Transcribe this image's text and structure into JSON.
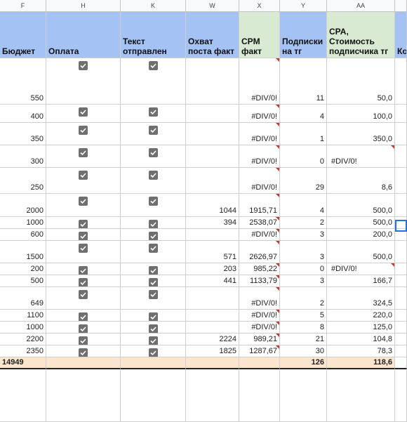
{
  "columns": [
    "F",
    "H",
    "K",
    "W",
    "X",
    "Y",
    "AA"
  ],
  "headers": {
    "budget": "Бюджет",
    "payment": "Оплата",
    "text_sent": "Текст отправлен",
    "reach_fact": "Охват поста факт",
    "cpm_fact": "CPM факт",
    "subs_tg": "Подписки на тг",
    "cpa": "CPA, Стоимость подписчика тг",
    "cut": "Ко"
  },
  "colors": {
    "header_blue": "#a4c2f4",
    "header_green": "#d9ead3",
    "total_bg": "#fce5cd",
    "checkbox": "#6f6f6f",
    "error_marker": "#c0392b"
  },
  "rows": [
    {
      "budget": "550",
      "paid": true,
      "sent": true,
      "reach": "",
      "cpm": "#DIV/0!",
      "subs": "11",
      "cpa": "50,0",
      "cpa_left": false
    },
    {
      "budget": "400",
      "paid": true,
      "sent": true,
      "reach": "",
      "cpm": "#DIV/0!",
      "subs": "4",
      "cpa": "100,0",
      "cpa_left": false
    },
    {
      "budget": "350",
      "paid": true,
      "sent": true,
      "reach": "",
      "cpm": "#DIV/0!",
      "subs": "1",
      "cpa": "350,0",
      "cpa_left": false
    },
    {
      "budget": "300",
      "paid": true,
      "sent": true,
      "reach": "",
      "cpm": "#DIV/0!",
      "subs": "0",
      "cpa": "#DIV/0!",
      "cpa_left": true
    },
    {
      "budget": "250",
      "paid": true,
      "sent": true,
      "reach": "",
      "cpm": "#DIV/0!",
      "subs": "29",
      "cpa": "8,6",
      "cpa_left": false
    },
    {
      "budget": "2000",
      "paid": true,
      "sent": true,
      "reach": "1044",
      "cpm": "1915,71",
      "subs": "4",
      "cpa": "500,0",
      "cpa_left": false
    },
    {
      "budget": "1000",
      "paid": true,
      "sent": true,
      "reach": "394",
      "cpm": "2538,07",
      "subs": "2",
      "cpa": "500,0",
      "cpa_left": false
    },
    {
      "budget": "600",
      "paid": true,
      "sent": true,
      "reach": "",
      "cpm": "#DIV/0!",
      "subs": "3",
      "cpa": "200,0",
      "cpa_left": false
    },
    {
      "budget": "1500",
      "paid": true,
      "sent": true,
      "reach": "571",
      "cpm": "2626,97",
      "subs": "3",
      "cpa": "500,0",
      "cpa_left": false
    },
    {
      "budget": "200",
      "paid": true,
      "sent": true,
      "reach": "203",
      "cpm": "985,22",
      "subs": "0",
      "cpa": "#DIV/0!",
      "cpa_left": true
    },
    {
      "budget": "500",
      "paid": true,
      "sent": true,
      "reach": "441",
      "cpm": "1133,79",
      "subs": "3",
      "cpa": "166,7",
      "cpa_left": false
    },
    {
      "budget": "649",
      "paid": true,
      "sent": true,
      "reach": "",
      "cpm": "#DIV/0!",
      "subs": "2",
      "cpa": "324,5",
      "cpa_left": false
    },
    {
      "budget": "1100",
      "paid": true,
      "sent": true,
      "reach": "",
      "cpm": "#DIV/0!",
      "subs": "5",
      "cpa": "220,0",
      "cpa_left": false
    },
    {
      "budget": "1000",
      "paid": true,
      "sent": true,
      "reach": "",
      "cpm": "#DIV/0!",
      "subs": "8",
      "cpa": "125,0",
      "cpa_left": false
    },
    {
      "budget": "2200",
      "paid": true,
      "sent": true,
      "reach": "2224",
      "cpm": "989,21",
      "subs": "21",
      "cpa": "104,8",
      "cpa_left": false
    },
    {
      "budget": "2350",
      "paid": true,
      "sent": true,
      "reach": "1825",
      "cpm": "1287,67",
      "subs": "30",
      "cpa": "78,3",
      "cpa_left": false
    }
  ],
  "totals": {
    "budget": "14949",
    "subs": "126",
    "cpa": "118,6"
  }
}
